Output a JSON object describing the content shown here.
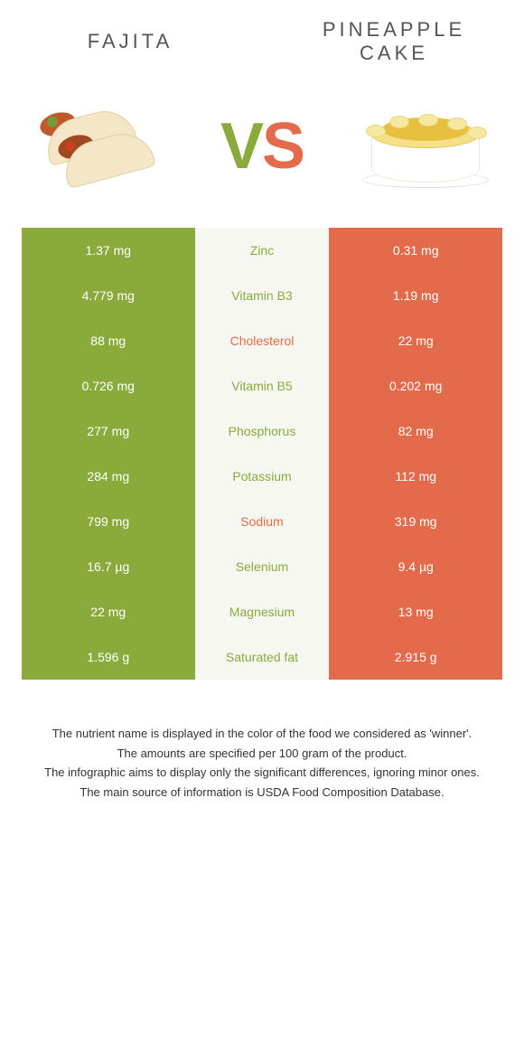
{
  "header": {
    "left_title": "FAJITA",
    "right_title": "PINEAPPLE CAKE",
    "vs_v": "V",
    "vs_s": "S"
  },
  "colors": {
    "left": "#8aaa3b",
    "right": "#e36a4a",
    "mid_bg": "#f7f7f2"
  },
  "rows": [
    {
      "left": "1.37 mg",
      "label": "Zinc",
      "right": "0.31 mg",
      "winner": "left"
    },
    {
      "left": "4.779 mg",
      "label": "Vitamin B3",
      "right": "1.19 mg",
      "winner": "left"
    },
    {
      "left": "88 mg",
      "label": "Cholesterol",
      "right": "22 mg",
      "winner": "right"
    },
    {
      "left": "0.726 mg",
      "label": "Vitamin B5",
      "right": "0.202 mg",
      "winner": "left"
    },
    {
      "left": "277 mg",
      "label": "Phosphorus",
      "right": "82 mg",
      "winner": "left"
    },
    {
      "left": "284 mg",
      "label": "Potassium",
      "right": "112 mg",
      "winner": "left"
    },
    {
      "left": "799 mg",
      "label": "Sodium",
      "right": "319 mg",
      "winner": "right"
    },
    {
      "left": "16.7 µg",
      "label": "Selenium",
      "right": "9.4 µg",
      "winner": "left"
    },
    {
      "left": "22 mg",
      "label": "Magnesium",
      "right": "13 mg",
      "winner": "left"
    },
    {
      "left": "1.596 g",
      "label": "Saturated fat",
      "right": "2.915 g",
      "winner": "left"
    }
  ],
  "footnotes": [
    "The nutrient name is displayed in the color of the food we considered as 'winner'.",
    "The amounts are specified per 100 gram of the product.",
    "The infographic aims to display only the significant differences, ignoring minor ones.",
    "The main source of information is USDA Food Composition Database."
  ]
}
